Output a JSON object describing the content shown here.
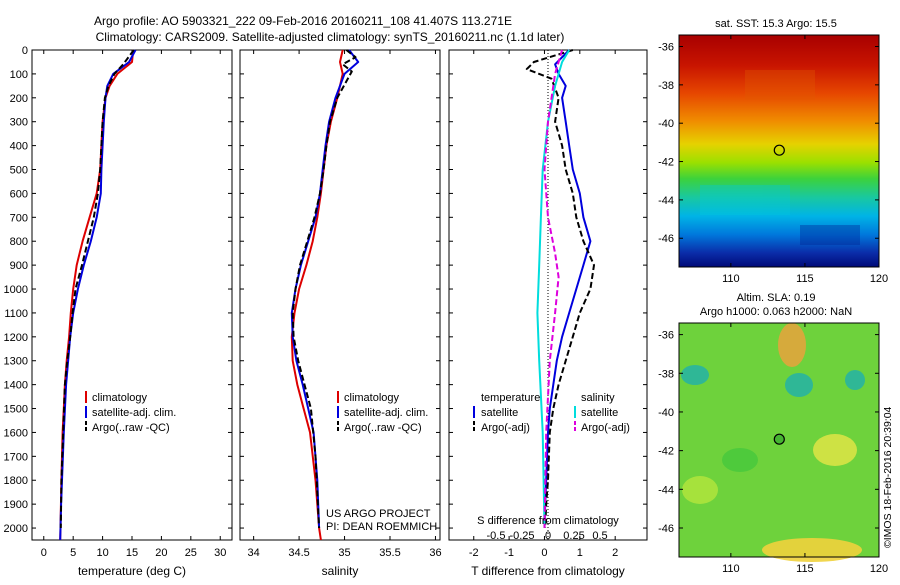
{
  "header": {
    "line1": "Argo profile: AO 5903321_222 09-Feb-2016 20160211_108 41.407S 113.271E",
    "line2": "Climatology: CARS2009. Satellite-adjusted climatology: synTS_20160211.nc (1.1d later)"
  },
  "colors": {
    "climatology": "#dd0000",
    "satellite": "#0000dd",
    "argo": "#000000",
    "salinity_satellite": "#00dddd",
    "salinity_argo": "#dd00dd"
  },
  "chart_data": [
    {
      "type": "line",
      "panel": "temperature",
      "xlabel": "temperature (deg C)",
      "xticks": [
        "0",
        "5",
        "10",
        "15",
        "20",
        "25",
        "30"
      ],
      "xlim": [
        -2,
        32
      ],
      "ylim": [
        0,
        2050
      ],
      "yticks": [
        "0",
        "100",
        "200",
        "300",
        "400",
        "500",
        "600",
        "700",
        "800",
        "900",
        "1000",
        "1100",
        "1200",
        "1300",
        "1400",
        "1500",
        "1600",
        "1700",
        "1800",
        "1900",
        "2000"
      ],
      "legend": [
        "climatology",
        "satellite-adj. clim.",
        "Argo(..raw -QC)"
      ],
      "series": [
        {
          "name": "climatology",
          "style": "solid",
          "color_key": "climatology",
          "x": [
            15.2,
            15.0,
            12.5,
            11.2,
            10.5,
            10.0,
            9.8,
            9.6,
            9.0,
            7.8,
            6.6,
            5.6,
            5.0,
            4.6,
            4.3,
            3.9,
            3.6,
            3.4,
            3.2,
            3.0,
            2.85,
            2.8
          ],
          "y": [
            0,
            50,
            100,
            150,
            200,
            300,
            400,
            500,
            600,
            700,
            800,
            900,
            1000,
            1100,
            1200,
            1300,
            1400,
            1500,
            1600,
            1800,
            2000,
            2050
          ]
        },
        {
          "name": "satellite-adj. clim.",
          "style": "solid",
          "color_key": "satellite",
          "x": [
            15.6,
            14.5,
            11.8,
            10.8,
            10.5,
            10.2,
            10.0,
            9.8,
            9.7,
            9.0,
            8.0,
            6.8,
            5.8,
            5.0,
            4.5,
            3.8,
            3.4,
            3.1,
            2.95,
            2.85,
            2.8
          ],
          "y": [
            0,
            50,
            100,
            150,
            200,
            300,
            400,
            500,
            600,
            700,
            800,
            900,
            1000,
            1100,
            1200,
            1400,
            1600,
            1800,
            1900,
            2000,
            2050
          ]
        },
        {
          "name": "Argo(..raw -QC)",
          "style": "dashed",
          "color_key": "argo",
          "x": [
            15.3,
            13.5,
            12.0,
            11.0,
            10.4,
            10.0,
            9.8,
            9.6,
            9.2,
            8.5,
            7.5,
            6.5,
            5.4,
            4.9,
            4.5,
            4.0,
            3.6,
            3.3,
            3.0,
            2.9
          ],
          "y": [
            0,
            60,
            100,
            150,
            200,
            300,
            400,
            500,
            600,
            700,
            800,
            900,
            1000,
            1100,
            1200,
            1300,
            1400,
            1600,
            1800,
            2000
          ]
        }
      ]
    },
    {
      "type": "line",
      "panel": "salinity",
      "xlabel": "salinity",
      "xticks": [
        "34",
        "34.5",
        "35",
        "35.5",
        "36"
      ],
      "xlim": [
        33.85,
        36.05
      ],
      "ylim": [
        0,
        2050
      ],
      "legend": [
        "climatology",
        "satellite-adj. clim.",
        "Argo(..raw -QC)"
      ],
      "annotation": [
        "US ARGO PROJECT",
        "PI: DEAN ROEMMICH"
      ],
      "series": [
        {
          "name": "climatology",
          "style": "solid",
          "color_key": "climatology",
          "x": [
            34.98,
            34.95,
            34.98,
            34.92,
            34.85,
            34.8,
            34.77,
            34.74,
            34.7,
            34.65,
            34.58,
            34.5,
            34.45,
            34.42,
            34.43,
            34.48,
            34.55,
            34.62,
            34.68,
            34.72,
            34.74
          ],
          "y": [
            0,
            50,
            100,
            200,
            300,
            400,
            500,
            600,
            700,
            800,
            900,
            1000,
            1100,
            1200,
            1300,
            1400,
            1500,
            1600,
            1800,
            2000,
            2050
          ]
        },
        {
          "name": "satellite-adj. clim.",
          "style": "solid",
          "color_key": "satellite",
          "x": [
            35.05,
            35.15,
            35.0,
            34.9,
            34.83,
            34.79,
            34.76,
            34.73,
            34.68,
            34.6,
            34.52,
            34.46,
            34.42,
            34.43,
            34.47,
            34.54,
            34.6,
            34.66,
            34.7,
            34.72
          ],
          "y": [
            0,
            50,
            100,
            200,
            300,
            400,
            500,
            600,
            700,
            800,
            900,
            1000,
            1100,
            1200,
            1300,
            1400,
            1500,
            1600,
            1800,
            2000
          ]
        },
        {
          "name": "Argo(..raw -QC)",
          "style": "dashed",
          "color_key": "argo",
          "x": [
            35.02,
            35.12,
            34.98,
            35.08,
            34.92,
            34.84,
            34.8,
            34.77,
            34.73,
            34.67,
            34.59,
            34.51,
            34.46,
            34.43,
            34.44,
            34.49,
            34.56,
            34.63,
            34.68,
            34.72
          ],
          "y": [
            0,
            30,
            60,
            90,
            200,
            300,
            400,
            500,
            600,
            700,
            800,
            900,
            1000,
            1100,
            1200,
            1300,
            1400,
            1500,
            1700,
            2000
          ]
        }
      ]
    },
    {
      "type": "line",
      "panel": "difference",
      "xlabel": "T difference from climatology",
      "xticks": [
        "-2",
        "-1",
        "0",
        "1",
        "2"
      ],
      "xlim": [
        -2.7,
        2.9
      ],
      "top_axis_label": "S difference from climatology",
      "top_xticks": [
        "-0.5",
        "-0.25",
        "0",
        "0.25",
        "0.5"
      ],
      "ylim": [
        0,
        2050
      ],
      "legend_temperature": [
        "temperature",
        "satellite",
        "Argo(-adj)"
      ],
      "legend_salinity": [
        "salinity",
        "satellite",
        "Argo(-adj)"
      ],
      "series": [
        {
          "name": "temperature satellite",
          "style": "solid",
          "color_key": "satellite",
          "x": [
            0.7,
            0.3,
            0.4,
            0.6,
            0.5,
            0.6,
            0.7,
            0.8,
            1.0,
            1.1,
            1.3,
            1.1,
            0.9,
            0.7,
            0.5,
            0.35,
            0.25,
            0.15,
            0.1,
            0.05,
            0.02,
            0.0
          ],
          "y": [
            0,
            60,
            100,
            150,
            200,
            300,
            400,
            500,
            600,
            700,
            800,
            900,
            1000,
            1100,
            1200,
            1300,
            1400,
            1500,
            1600,
            1800,
            1900,
            2000
          ]
        },
        {
          "name": "temperature Argo(-adj)",
          "style": "dashed",
          "color_key": "argo",
          "x": [
            0.8,
            -0.3,
            -0.5,
            0.2,
            0.4,
            0.3,
            0.5,
            0.6,
            0.8,
            0.9,
            1.1,
            1.4,
            1.3,
            1.0,
            0.8,
            0.6,
            0.4,
            0.25,
            0.15,
            0.1,
            0.05,
            0.02
          ],
          "y": [
            0,
            50,
            80,
            120,
            200,
            300,
            400,
            500,
            600,
            700,
            800,
            900,
            1000,
            1100,
            1200,
            1300,
            1400,
            1500,
            1600,
            1800,
            1900,
            2000
          ]
        },
        {
          "name": "salinity satellite",
          "style": "solid",
          "color_key": "salinity_satellite",
          "x": [
            0.7,
            0.5,
            0.3,
            0.1,
            -0.05,
            -0.1,
            -0.15,
            -0.2,
            -0.15,
            -0.05,
            0.0
          ],
          "y": [
            0,
            50,
            150,
            300,
            500,
            700,
            900,
            1100,
            1300,
            1600,
            2000
          ]
        },
        {
          "name": "salinity Argo(-adj)",
          "style": "dashed",
          "color_key": "salinity_argo",
          "x": [
            0.5,
            0.3,
            0.1,
            0.0,
            0.1,
            0.3,
            0.4,
            0.3,
            0.15,
            0.05,
            0.0
          ],
          "y": [
            0,
            100,
            300,
            500,
            700,
            850,
            950,
            1100,
            1300,
            1600,
            2000
          ]
        }
      ]
    },
    {
      "type": "heatmap",
      "panel": "sst-map",
      "title": "sat. SST: 15.3 Argo: 15.5",
      "xticks": [
        "110",
        "115",
        "120"
      ],
      "yticks": [
        "-36",
        "-38",
        "-40",
        "-42",
        "-44",
        "-46"
      ],
      "xlim": [
        106.5,
        120
      ],
      "ylim": [
        -47.5,
        -35.4
      ],
      "marker": {
        "lon": 113.271,
        "lat": -41.407
      }
    },
    {
      "type": "heatmap",
      "panel": "sla-map",
      "title": "Altim. SLA: 0.19",
      "subtitle": "Argo h1000: 0.063 h2000: NaN",
      "xticks": [
        "110",
        "115",
        "120"
      ],
      "yticks": [
        "-36",
        "-38",
        "-40",
        "-42",
        "-44",
        "-46"
      ],
      "xlim": [
        106.5,
        120
      ],
      "ylim": [
        -47.5,
        -35.4
      ],
      "marker": {
        "lon": 113.271,
        "lat": -41.407
      }
    }
  ],
  "credit": "©IMOS 18-Feb-2016 20:39:04"
}
